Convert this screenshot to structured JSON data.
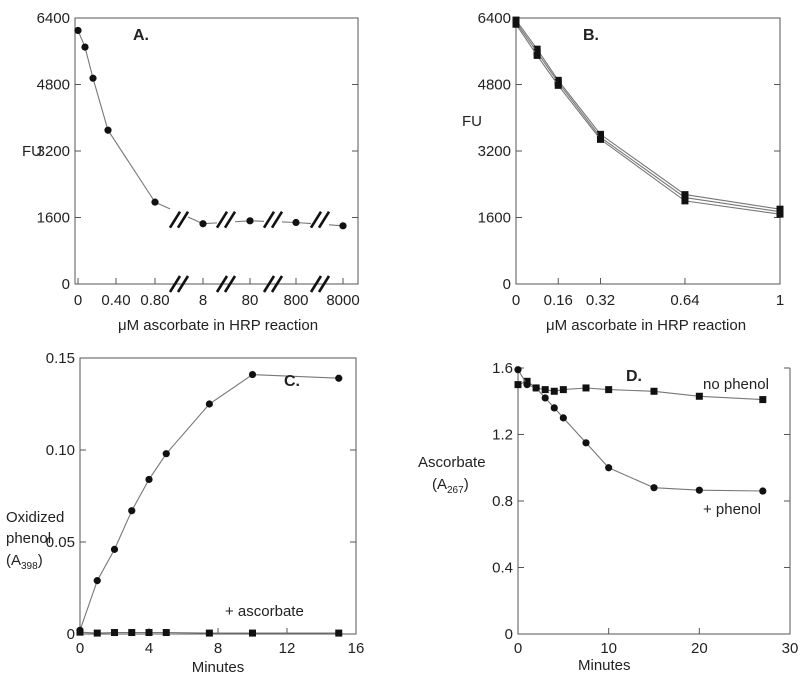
{
  "chart_data": [
    {
      "panel": "A.",
      "type": "line",
      "ylabel": "FU",
      "xlabel": "μM ascorbate in HRP reaction",
      "ylim": [
        0,
        6400
      ],
      "yticks": [
        "0",
        "1600",
        "3200",
        "4800",
        "6400"
      ],
      "xticks": [
        "0",
        "0.40",
        "0.80",
        "8",
        "80",
        "800",
        "8000"
      ],
      "axis_breaks": true,
      "series": [
        {
          "x": [
            "0",
            "0.05",
            "0.1",
            "0.2",
            "0.8",
            "8",
            "80",
            "800",
            "8000"
          ],
          "values": [
            6100,
            5700,
            4950,
            3700,
            1970,
            1450,
            1520,
            1480,
            1400
          ]
        }
      ]
    },
    {
      "panel": "B.",
      "type": "line",
      "ylabel": "FU",
      "xlabel": "μM ascorbate in HRP reaction",
      "ylim": [
        0,
        6400
      ],
      "yticks": [
        "0",
        "1600",
        "3200",
        "4800",
        "6400"
      ],
      "xticks": [
        "0",
        "0.16",
        "0.32",
        "0.64",
        "1"
      ],
      "series": [
        {
          "x": [
            0,
            0.08,
            0.16,
            0.32,
            0.64,
            1
          ],
          "values": [
            6350,
            5650,
            4900,
            3600,
            2150,
            1800
          ]
        },
        {
          "x": [
            0,
            0.08,
            0.16,
            0.32,
            0.64,
            1
          ],
          "values": [
            6300,
            5580,
            4850,
            3530,
            2080,
            1740
          ]
        },
        {
          "x": [
            0,
            0.08,
            0.16,
            0.32,
            0.64,
            1
          ],
          "values": [
            6250,
            5500,
            4780,
            3480,
            2000,
            1680
          ]
        }
      ]
    },
    {
      "panel": "C.",
      "type": "line",
      "ylabel": "Oxidized phenol (A398)",
      "ylabel_lines": [
        "Oxidized",
        "phenol"
      ],
      "ylabel_sub_main": "A",
      "ylabel_sub": "398",
      "xlabel": "Minutes",
      "xlim": [
        0,
        16
      ],
      "ylim": [
        0,
        0.15
      ],
      "yticks": [
        "0",
        "0.05",
        "0.10",
        "0.15"
      ],
      "xticks": [
        "0",
        "4",
        "8",
        "12",
        "16"
      ],
      "annotations": [
        "+ ascorbate"
      ],
      "series": [
        {
          "x": [
            0,
            1,
            2,
            3,
            4,
            5,
            7.5,
            10,
            15
          ],
          "values": [
            0.002,
            0.029,
            0.046,
            0.067,
            0.084,
            0.098,
            0.125,
            0.141,
            0.139
          ]
        },
        {
          "x": [
            0,
            1,
            2,
            3,
            4,
            5,
            7.5,
            10,
            15
          ],
          "values": [
            0.001,
            0.0005,
            0.0008,
            0.0008,
            0.0008,
            0.0008,
            0.0005,
            0.0005,
            0.0005
          ]
        }
      ]
    },
    {
      "panel": "D.",
      "type": "line",
      "ylabel": "Ascorbate (A267)",
      "ylabel_main": "Ascorbate",
      "ylabel_sub_main": "A",
      "ylabel_sub": "267",
      "xlabel": "Minutes",
      "xlim": [
        0,
        30
      ],
      "ylim": [
        0,
        1.6
      ],
      "yticks": [
        "0",
        "0.4",
        "0.8",
        "1.2",
        "1.6"
      ],
      "xticks": [
        "0",
        "10",
        "20",
        "30"
      ],
      "annotations": [
        "no phenol",
        "+ phenol"
      ],
      "series": [
        {
          "x": [
            0,
            1,
            2,
            3,
            4,
            5,
            7.5,
            10,
            15,
            20,
            27
          ],
          "values": [
            1.5,
            1.52,
            1.48,
            1.47,
            1.46,
            1.47,
            1.48,
            1.47,
            1.46,
            1.43,
            1.41
          ]
        },
        {
          "x": [
            0,
            1,
            2,
            3,
            4,
            5,
            7.5,
            10,
            15,
            20,
            27
          ],
          "values": [
            1.59,
            1.5,
            1.48,
            1.42,
            1.36,
            1.3,
            1.15,
            1.0,
            0.88,
            0.865,
            0.86
          ]
        }
      ]
    }
  ]
}
